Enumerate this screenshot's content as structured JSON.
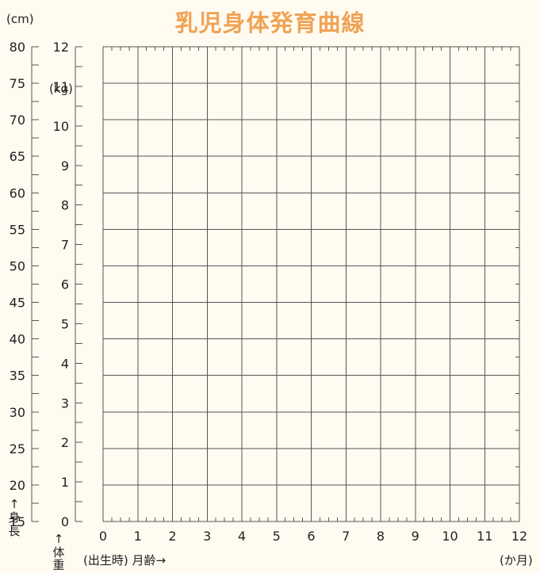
{
  "title": "乳児身体発育曲線",
  "height_axis": {
    "unit": "(cm)",
    "label_chars": [
      "身",
      "長"
    ],
    "arrow": "↑",
    "ticks": [
      15,
      20,
      25,
      30,
      35,
      40,
      45,
      50,
      55,
      60,
      65,
      70,
      75,
      80
    ],
    "range": [
      15,
      80
    ]
  },
  "weight_axis": {
    "unit": "(kg)",
    "label_chars": [
      "体",
      "重"
    ],
    "arrow": "↑",
    "ticks": [
      0,
      1,
      2,
      3,
      4,
      5,
      6,
      7,
      8,
      9,
      10,
      11,
      12
    ],
    "range": [
      0,
      12
    ]
  },
  "age_axis": {
    "label": "(出生時) 月齢→",
    "unit": "(か月)",
    "ticks": [
      0,
      1,
      2,
      3,
      4,
      5,
      6,
      7,
      8,
      9,
      10,
      11,
      12
    ],
    "range": [
      0,
      12
    ]
  },
  "chart_data": {
    "type": "line",
    "title": "乳児身体発育曲線",
    "xlabel": "(出生時) 月齢→",
    "x_unit": "(か月)",
    "xlim": [
      0,
      12
    ],
    "xticks": [
      0,
      1,
      2,
      3,
      4,
      5,
      6,
      7,
      8,
      9,
      10,
      11,
      12
    ],
    "y_axes": [
      {
        "label": "身長",
        "unit": "(cm)",
        "ylim": [
          15,
          80
        ],
        "ticks": [
          15,
          20,
          25,
          30,
          35,
          40,
          45,
          50,
          55,
          60,
          65,
          70,
          75,
          80
        ]
      },
      {
        "label": "体重",
        "unit": "(kg)",
        "ylim": [
          0,
          12
        ],
        "ticks": [
          0,
          1,
          2,
          3,
          4,
          5,
          6,
          7,
          8,
          9,
          10,
          11,
          12
        ]
      }
    ],
    "grid": true,
    "series": []
  },
  "colors": {
    "title": "#f0a355",
    "background": "#fffbf1",
    "grid": "#555555"
  }
}
